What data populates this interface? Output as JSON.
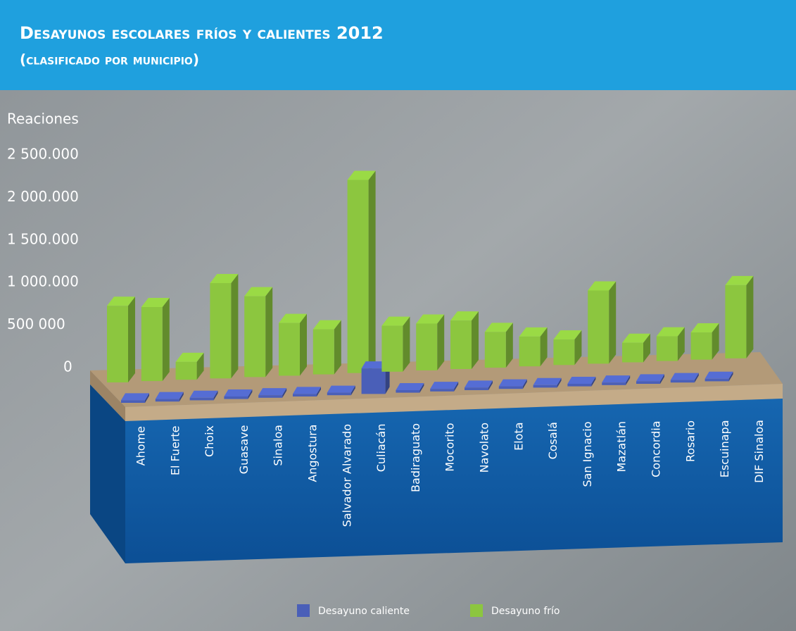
{
  "chart_data": {
    "type": "bar3d",
    "title": "Desayunos escolares fríos y calientes 2012",
    "subtitle": "(clasificado por municipio)",
    "y_label": "Reaciones",
    "categories": [
      "Ahome",
      "El Fuerte",
      "Choix",
      "Guasave",
      "Sinaloa",
      "Angostura",
      "Salvador Alvarado",
      "Culiacán",
      "Badiraguato",
      "Mocorito",
      "Navolato",
      "Elota",
      "Cosalá",
      "San Ignacio",
      "Mazatlán",
      "Concordia",
      "Rosario",
      "Escuinapa",
      "DIF Sinaloa"
    ],
    "series": [
      {
        "name": "Desayuno caliente",
        "color": "#4a5fb8",
        "values": [
          30000,
          30000,
          30000,
          30000,
          30000,
          30000,
          30000,
          300000,
          30000,
          30000,
          30000,
          30000,
          30000,
          30000,
          30000,
          30000,
          30000,
          30000,
          0
        ]
      },
      {
        "name": "Desayuno frío",
        "color": "#8cc63f",
        "values": [
          900000,
          870000,
          210000,
          1120000,
          950000,
          620000,
          530000,
          2270000,
          540000,
          550000,
          570000,
          420000,
          350000,
          300000,
          860000,
          230000,
          290000,
          320000,
          860000
        ]
      }
    ],
    "ylim": [
      0,
      2500000
    ],
    "yticks": [
      0,
      {
        "value": 500000,
        "label": "500 000"
      },
      {
        "value": 1000000,
        "label": "1 000.000"
      },
      {
        "value": 1500000,
        "label": "1 500.000"
      },
      {
        "value": 2000000,
        "label": "2 000.000"
      },
      {
        "value": 2500000,
        "label": "2 500.000"
      }
    ],
    "legend": "bottom"
  }
}
